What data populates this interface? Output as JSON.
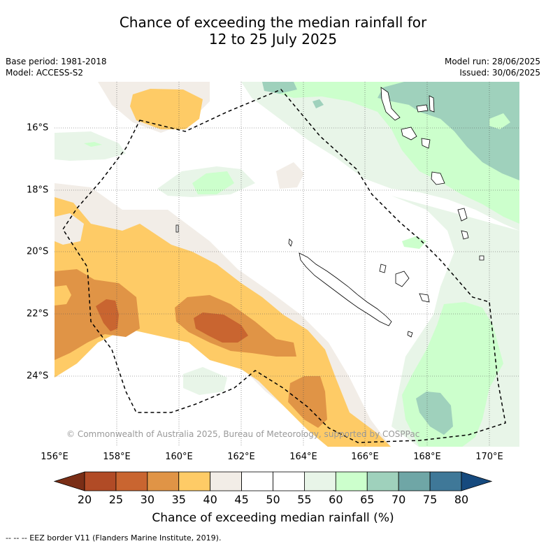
{
  "title_line1": "Chance of exceeding the median rainfall for",
  "title_line2": "12 to 25 July 2025",
  "base_period": "Base period: 1981-2018",
  "model": "Model: ACCESS-S2",
  "model_run": "Model run: 28/06/2025",
  "issued": "Issued: 30/06/2025",
  "copyright": "© Commonwealth of Australia 2025, Bureau of Meteorology, supported by COSPPac",
  "lon_labels": [
    "156°E",
    "158°E",
    "160°E",
    "162°E",
    "164°E",
    "166°E",
    "168°E",
    "170°E"
  ],
  "lat_labels": [
    "16°S",
    "18°S",
    "20°S",
    "22°S",
    "24°S"
  ],
  "colorbar": {
    "label": "Chance of exceeding median rainfall (%)",
    "ticks": [
      "20",
      "25",
      "30",
      "35",
      "40",
      "45",
      "50",
      "55",
      "60",
      "65",
      "70",
      "75",
      "80"
    ],
    "colors": [
      "#7a2e16",
      "#b14b26",
      "#c96530",
      "#e09446",
      "#fecb66",
      "#f2ede7",
      "#ffffff",
      "#ffffff",
      "#e8f5e8",
      "#ccffcc",
      "#9fd1bc",
      "#6fa6a6",
      "#3f7898",
      "#164a7e"
    ]
  },
  "footnote": "--  --  -- EEZ border V11 (Flanders Marine Institute, 2019)."
}
